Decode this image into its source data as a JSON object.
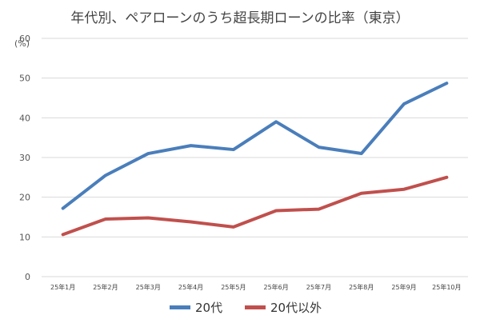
{
  "chart_data": {
    "type": "line",
    "title": "年代別、ペアローンのうち超長期ローンの比率（東京）",
    "ylabel": "(%)",
    "ylim": [
      0,
      60
    ],
    "yticks": [
      "0",
      "10",
      "20",
      "30",
      "40",
      "50",
      "60"
    ],
    "grid": true,
    "legend_position": "bottom",
    "categories": [
      "25年1月",
      "25年2月",
      "25年3月",
      "25年4月",
      "25年5月",
      "25年6月",
      "25年7月",
      "25年8月",
      "25年9月",
      "25年10月"
    ],
    "series": [
      {
        "name": "20代",
        "color": "#4a7ebb",
        "values": [
          17.2,
          25.5,
          31.0,
          33.0,
          32.0,
          39.0,
          32.6,
          31.0,
          43.5,
          48.7
        ]
      },
      {
        "name": "20代以外",
        "color": "#c0504d",
        "values": [
          10.6,
          14.5,
          14.8,
          13.8,
          12.5,
          16.6,
          17.0,
          21.0,
          22.0,
          25.0
        ]
      }
    ]
  }
}
